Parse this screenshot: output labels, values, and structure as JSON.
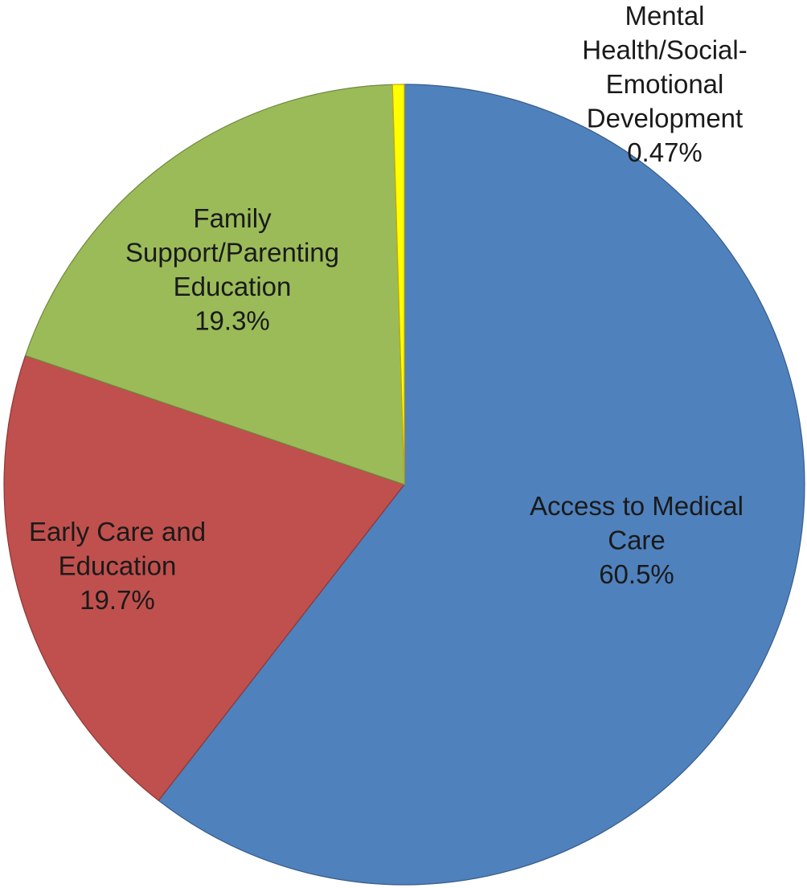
{
  "chart_data": {
    "type": "pie",
    "slices": [
      {
        "name": "Access to Medical Care",
        "value": 60.5,
        "percent_label": "60.5%",
        "label_lines": [
          "Access to Medical",
          "Care",
          "60.5%"
        ],
        "color": "#4F81BD",
        "stroke": "#385D8A"
      },
      {
        "name": "Early Care and Education",
        "value": 19.7,
        "percent_label": "19.7%",
        "label_lines": [
          "Early Care and",
          "Education",
          "19.7%"
        ],
        "color": "#C0504D",
        "stroke": "#8C3836"
      },
      {
        "name": "Family Support/Parenting Education",
        "value": 19.3,
        "percent_label": "19.3%",
        "label_lines": [
          "Family",
          "Support/Parenting",
          "Education",
          "19.3%"
        ],
        "color": "#9BBB59",
        "stroke": "#71893F"
      },
      {
        "name": "Mental Health/Social-Emotional Development",
        "value": 0.47,
        "percent_label": "0.47%",
        "label_lines": [
          "Mental",
          "Health/Social-",
          "Emotional",
          "Development",
          "0.47%"
        ],
        "color": "#FFFF00",
        "stroke": "#C9A800"
      }
    ]
  }
}
